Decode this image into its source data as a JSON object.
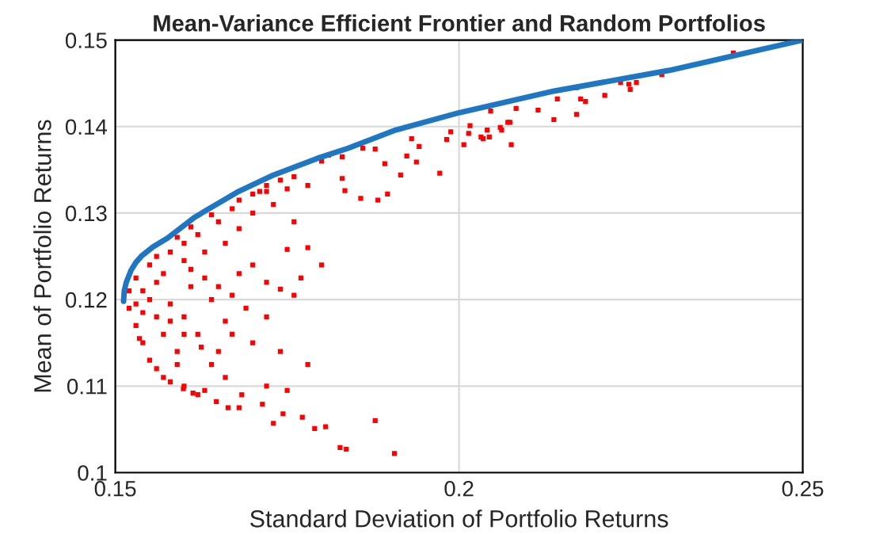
{
  "chart_data": {
    "type": "scatter",
    "title": "Mean-Variance Efficient Frontier and Random Portfolios",
    "xlabel": "Standard Deviation of Portfolio Returns",
    "ylabel": "Mean of Portfolio Returns",
    "xlim": [
      0.15,
      0.25
    ],
    "ylim": [
      0.1,
      0.15
    ],
    "xticks": [
      0.15,
      0.2,
      0.25
    ],
    "yticks": [
      0.1,
      0.11,
      0.12,
      0.13,
      0.14,
      0.15
    ],
    "grid": true,
    "legend": false,
    "series": [
      {
        "color": "#ff0000",
        "marker": "square",
        "x": [
          0.1931,
          0.1942,
          0.1982,
          0.1988,
          0.2007,
          0.2016,
          0.2035,
          0.2041,
          0.2062,
          0.2074,
          0.2076,
          0.2115,
          0.2083,
          0.1878,
          0.1892,
          0.1924,
          0.1972,
          0.1857,
          0.1882,
          0.1896,
          0.1834,
          0.1915,
          0.1938,
          0.2046,
          0.2143,
          0.2177,
          0.2171,
          0.2184,
          0.2212,
          0.2235,
          0.2247,
          0.2249,
          0.2258,
          0.2295,
          0.2399,
          0.2138,
          0.2171,
          0.2014,
          0.2032,
          0.2044,
          0.206,
          0.2071,
          0.1827,
          0.1836,
          0.179,
          0.1806,
          0.173,
          0.1744,
          0.1772,
          0.1714,
          0.1664,
          0.1647,
          0.1684,
          0.1613,
          0.1599,
          0.1906,
          0.1878,
          0.186,
          0.183,
          0.181,
          0.183,
          0.18,
          0.176,
          0.178,
          0.172,
          0.175,
          0.17,
          0.172,
          0.168,
          0.176,
          0.172,
          0.17,
          0.174,
          0.178,
          0.172,
          0.175,
          0.166,
          0.163,
          0.168,
          0.16,
          0.162,
          0.158,
          0.165,
          0.162,
          0.166,
          0.16,
          0.164,
          0.158,
          0.161,
          0.157,
          0.16,
          0.163,
          0.166,
          0.162,
          0.168,
          0.165,
          0.17,
          0.173,
          0.168,
          0.175,
          0.171,
          0.155,
          0.154,
          0.153,
          0.152,
          0.152,
          0.153,
          0.155,
          0.156,
          0.154,
          0.155,
          0.156,
          0.157,
          0.159,
          0.157,
          0.156,
          0.158,
          0.16,
          0.156,
          0.161,
          0.163,
          0.165,
          0.167,
          0.169,
          0.154,
          0.153,
          0.1535,
          0.158,
          0.16,
          0.1625,
          0.164,
          0.159,
          0.167,
          0.159,
          0.161,
          0.164,
          0.167,
          0.17,
          0.172,
          0.174,
          0.176,
          0.178,
          0.18,
          0.177,
          0.174
        ],
        "values": [
          0.1386,
          0.1377,
          0.1385,
          0.1394,
          0.1379,
          0.1401,
          0.1386,
          0.1396,
          0.1396,
          0.1405,
          0.1379,
          0.1419,
          0.1421,
          0.1374,
          0.1357,
          0.1366,
          0.1346,
          0.1317,
          0.1315,
          0.1322,
          0.1326,
          0.1344,
          0.1359,
          0.1418,
          0.1432,
          0.1432,
          0.1445,
          0.1429,
          0.1436,
          0.1451,
          0.1449,
          0.1443,
          0.1451,
          0.146,
          0.1485,
          0.1408,
          0.1414,
          0.1392,
          0.1388,
          0.1388,
          0.1399,
          0.1405,
          0.1029,
          0.1027,
          0.1051,
          0.1053,
          0.1057,
          0.1068,
          0.1064,
          0.1079,
          0.1075,
          0.1082,
          0.109,
          0.1092,
          0.1097,
          0.1022,
          0.106,
          0.1375,
          0.1365,
          0.1367,
          0.134,
          0.136,
          0.1342,
          0.1332,
          0.1325,
          0.1258,
          0.124,
          0.122,
          0.123,
          0.1205,
          0.118,
          0.115,
          0.114,
          0.1125,
          0.11,
          0.1095,
          0.111,
          0.1095,
          0.1075,
          0.11,
          0.109,
          0.1105,
          0.114,
          0.116,
          0.1175,
          0.118,
          0.12,
          0.1195,
          0.1215,
          0.123,
          0.1245,
          0.1255,
          0.1265,
          0.1275,
          0.1282,
          0.129,
          0.13,
          0.131,
          0.1315,
          0.1328,
          0.1325,
          0.12,
          0.1185,
          0.117,
          0.119,
          0.121,
          0.1225,
          0.124,
          0.122,
          0.115,
          0.113,
          0.112,
          0.111,
          0.114,
          0.116,
          0.118,
          0.1255,
          0.1265,
          0.125,
          0.1235,
          0.1225,
          0.1215,
          0.1205,
          0.119,
          0.121,
          0.1195,
          0.1155,
          0.1175,
          0.116,
          0.1145,
          0.1125,
          0.1125,
          0.116,
          0.1272,
          0.1284,
          0.1298,
          0.1305,
          0.1322,
          0.1332,
          0.1338,
          0.129,
          0.126,
          0.124,
          0.1225,
          0.1212
        ]
      },
      {
        "type": "line",
        "color": "#1f77c4",
        "marker": "none",
        "line_style": "solid",
        "x": [
          0.1512,
          0.1513,
          0.1516,
          0.1523,
          0.153,
          0.1539,
          0.1555,
          0.1576,
          0.1615,
          0.1677,
          0.173,
          0.1793,
          0.1839,
          0.1908,
          0.2,
          0.2138,
          0.2306,
          0.25
        ],
        "values": [
          0.1198,
          0.121,
          0.122,
          0.1234,
          0.1243,
          0.1251,
          0.1261,
          0.1271,
          0.1295,
          0.1324,
          0.1344,
          0.1363,
          0.1375,
          0.1396,
          0.1416,
          0.1441,
          0.1465,
          0.15
        ]
      }
    ]
  }
}
